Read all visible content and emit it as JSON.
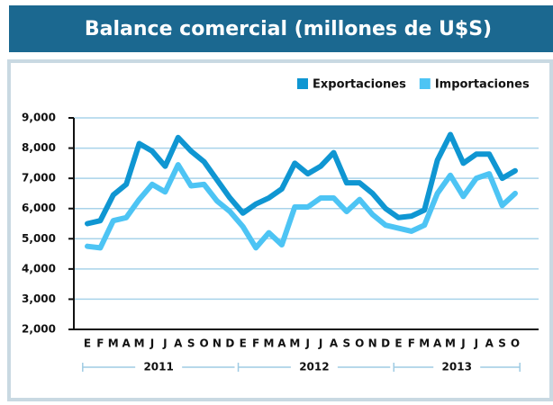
{
  "chart_data": {
    "type": "line",
    "title": "Balance comercial (millones de U$S)",
    "categories": [
      "E",
      "F",
      "M",
      "A",
      "M",
      "J",
      "J",
      "A",
      "S",
      "O",
      "N",
      "D",
      "E",
      "F",
      "M",
      "A",
      "M",
      "J",
      "J",
      "A",
      "S",
      "O",
      "N",
      "D",
      "E",
      "F",
      "M",
      "A",
      "M",
      "J",
      "J",
      "A",
      "S",
      "O"
    ],
    "year_labels": [
      "2011",
      "2012",
      "2013"
    ],
    "series": [
      {
        "name": "Exportaciones",
        "color": "#0f96d2",
        "values": [
          5500,
          5600,
          6450,
          6800,
          8150,
          7900,
          7400,
          8350,
          7900,
          7550,
          6950,
          6350,
          5850,
          6150,
          6350,
          6650,
          7500,
          7150,
          7400,
          7850,
          6850,
          6850,
          6500,
          6000,
          5700,
          5750,
          5950,
          7600,
          8450,
          7500,
          7800,
          7800,
          7000,
          7250
        ]
      },
      {
        "name": "Importaciones",
        "color": "#4dc4f4",
        "values": [
          4750,
          4700,
          5600,
          5700,
          6300,
          6800,
          6550,
          7450,
          6750,
          6800,
          6250,
          5900,
          5400,
          4700,
          5200,
          4800,
          6050,
          6050,
          6350,
          6350,
          5900,
          6300,
          5800,
          5450,
          5350,
          5250,
          5450,
          6500,
          7100,
          6400,
          7000,
          7150,
          6100,
          6500
        ]
      }
    ],
    "ylim": [
      2000,
      9000
    ],
    "yticks": [
      {
        "value": 2000,
        "label": "2,000"
      },
      {
        "value": 3000,
        "label": "3,000"
      },
      {
        "value": 4000,
        "label": "4,000"
      },
      {
        "value": 5000,
        "label": "5,000"
      },
      {
        "value": 6000,
        "label": "6,000"
      },
      {
        "value": 7000,
        "label": "7,000"
      },
      {
        "value": 8000,
        "label": "8,000"
      },
      {
        "value": 9000,
        "label": "9,000"
      }
    ],
    "grid": true
  }
}
